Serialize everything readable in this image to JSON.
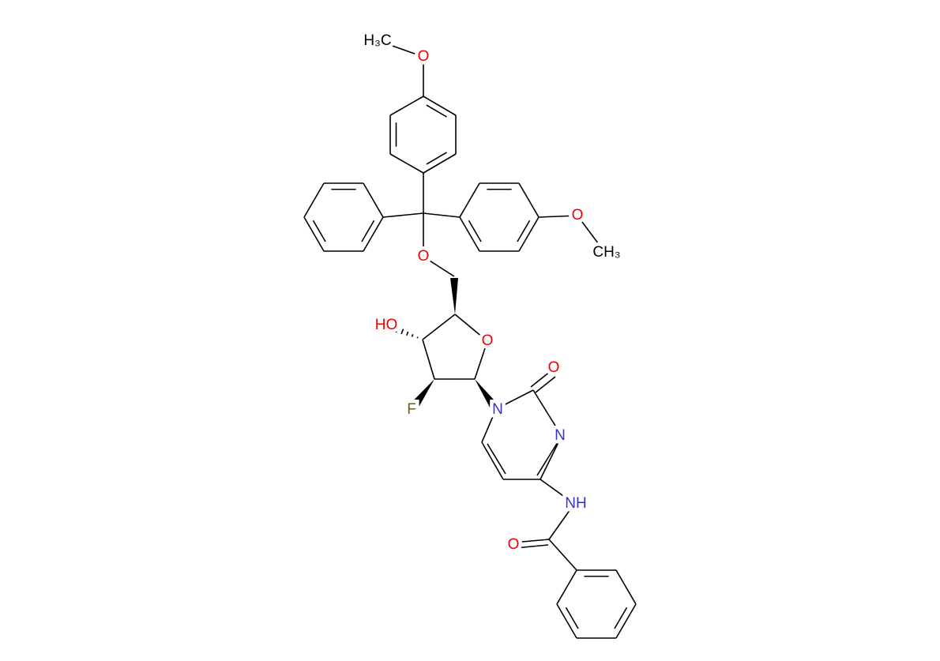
{
  "atoms": [
    {
      "label": "H₃C"
    },
    {
      "label": "O"
    },
    {
      "label": "O"
    },
    {
      "label": "CH₃"
    },
    {
      "label": "O"
    },
    {
      "label": "HO"
    },
    {
      "label": "O"
    },
    {
      "label": "F"
    },
    {
      "label": "N"
    },
    {
      "label": "O"
    },
    {
      "label": "N"
    },
    {
      "label": "NH"
    },
    {
      "label": "O"
    }
  ]
}
